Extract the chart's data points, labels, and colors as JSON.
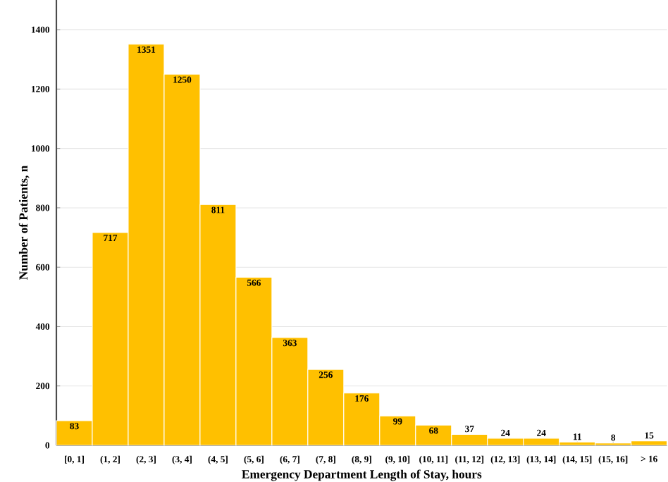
{
  "chart_data": {
    "type": "bar",
    "xlabel": "Emergency Department Length of Stay, hours",
    "ylabel": "Number of Patients, n",
    "categories": [
      "[0, 1]",
      "(1, 2]",
      "(2, 3]",
      "(3, 4]",
      "(4, 5]",
      "(5, 6]",
      "(6, 7]",
      "(7, 8]",
      "(8, 9]",
      "(9, 10]",
      "(10, 11]",
      "(11, 12]",
      "(12, 13]",
      "(13, 14]",
      "(14, 15]",
      "(15, 16]",
      "> 16"
    ],
    "values": [
      83,
      717,
      1351,
      1250,
      811,
      566,
      363,
      256,
      176,
      99,
      68,
      37,
      24,
      24,
      11,
      8,
      15
    ],
    "color": "#ffc000",
    "ylim": [
      0,
      1500
    ],
    "yticks": [
      0,
      200,
      400,
      600,
      800,
      1000,
      1200,
      1400
    ],
    "grid": "y",
    "data_labels": true
  }
}
